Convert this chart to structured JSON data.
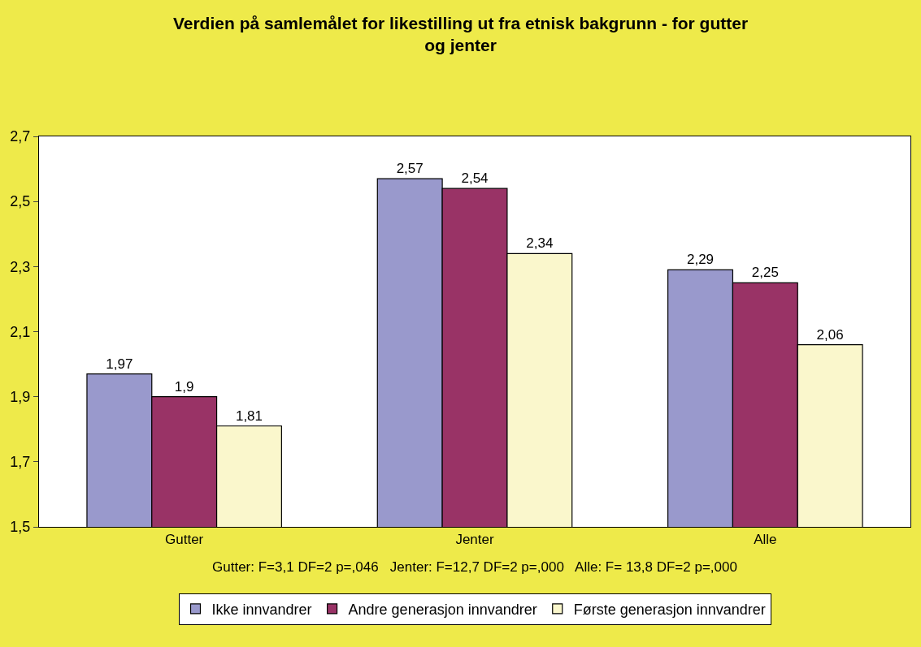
{
  "chart_data": {
    "type": "bar",
    "title": "Verdien på samlemålet for likestilling ut fra etnisk bakgrunn - for gutter og jenter",
    "xlabel": "Gutter: F=3,1 DF=2 p=,046   Jenter: F=12,7 DF=2 p=,000   Alle: F= 13,8 DF=2 p=,000",
    "categories": [
      "Gutter",
      "Jenter",
      "Alle"
    ],
    "series": [
      {
        "name": "Ikke innvandrer",
        "color": "#9999cc",
        "values": [
          1.97,
          2.57,
          2.29
        ],
        "value_labels": [
          "1,97",
          "2,57",
          "2,29"
        ]
      },
      {
        "name": "Andre generasjon innvandrer",
        "color": "#993366",
        "values": [
          1.9,
          2.54,
          2.25
        ],
        "value_labels": [
          "1,9",
          "2,54",
          "2,25"
        ]
      },
      {
        "name": "Første generasjon innvandrer",
        "color": "#faf7cc",
        "values": [
          1.81,
          2.34,
          2.06
        ],
        "value_labels": [
          "1,81",
          "2,34",
          "2,06"
        ]
      }
    ],
    "ylim": [
      1.5,
      2.7
    ],
    "yticks": [
      {
        "value": 1.5,
        "label": "1,5"
      },
      {
        "value": 1.7,
        "label": "1,7"
      },
      {
        "value": 1.9,
        "label": "1,9"
      },
      {
        "value": 2.1,
        "label": "2,1"
      },
      {
        "value": 2.3,
        "label": "2,3"
      },
      {
        "value": 2.5,
        "label": "2,5"
      },
      {
        "value": 2.7,
        "label": "2,7"
      }
    ],
    "legend": "bottom"
  }
}
